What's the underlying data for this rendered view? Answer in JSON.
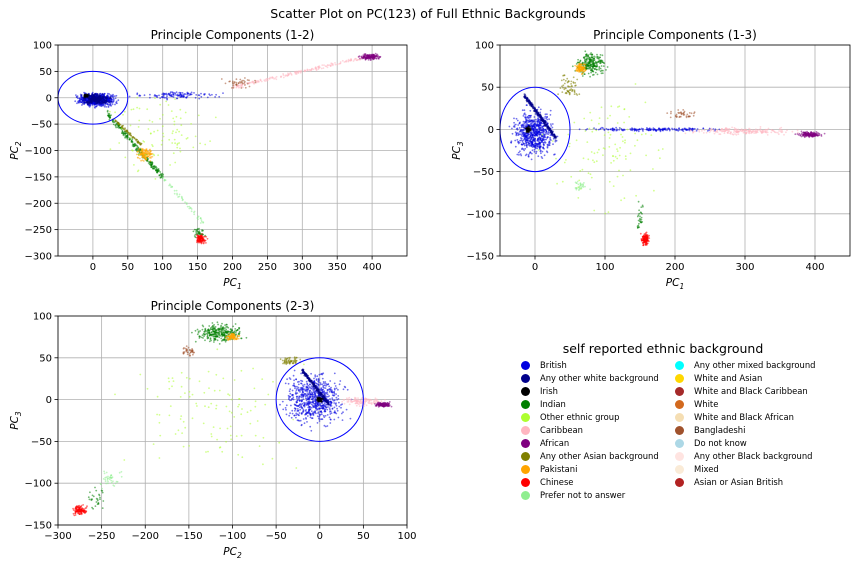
{
  "figure": {
    "suptitle": "Scatter Plot on PC(123) of Full Ethnic Backgrounds"
  },
  "chart_data": [
    {
      "type": "scatter",
      "title": "Principle Components (1-2)",
      "xlabel_base": "PC",
      "xlabel_sub": "1",
      "ylabel_base": "PC",
      "ylabel_sub": "2",
      "xlim": [
        -50,
        450
      ],
      "ylim": [
        -300,
        100
      ],
      "xticks": [
        0,
        50,
        100,
        150,
        200,
        250,
        300,
        350,
        400
      ],
      "yticks": [
        -300,
        -250,
        -200,
        -150,
        -100,
        -50,
        0,
        50,
        100
      ],
      "grid": true,
      "circle": {
        "cx": 0,
        "cy": 0,
        "rx": 50,
        "ry": 50,
        "color": "#0000ff"
      },
      "clusters": [
        {
          "cat": 0,
          "x": [
            -30,
            40
          ],
          "y": [
            -20,
            12
          ],
          "n": 700
        },
        {
          "cat": 0,
          "x": [
            40,
            200
          ],
          "y": [
            -5,
            15
          ],
          "n": 120
        },
        {
          "cat": 1,
          "x": [
            -20,
            30
          ],
          "y": [
            -15,
            10
          ],
          "n": 300
        },
        {
          "cat": 2,
          "x": [
            -15,
            -5
          ],
          "y": [
            0,
            8
          ],
          "n": 60
        },
        {
          "cat": 3,
          "x": [
            20,
            100
          ],
          "y": [
            -150,
            -30
          ],
          "n": 240,
          "line": true
        },
        {
          "cat": 8,
          "x": [
            60,
            90
          ],
          "y": [
            -125,
            -90
          ],
          "n": 120
        },
        {
          "cat": 7,
          "x": [
            30,
            70
          ],
          "y": [
            -90,
            -40
          ],
          "n": 80,
          "line": true
        },
        {
          "cat": 4,
          "x": [
            0,
            200
          ],
          "y": [
            -160,
            20
          ],
          "n": 90
        },
        {
          "cat": 9,
          "x": [
            145,
            165
          ],
          "y": [
            -280,
            -255
          ],
          "n": 130
        },
        {
          "cat": 3,
          "x": [
            140,
            165
          ],
          "y": [
            -270,
            -240
          ],
          "n": 30
        },
        {
          "cat": 5,
          "x": [
            200,
            400
          ],
          "y": [
            20,
            80
          ],
          "n": 200,
          "line": true
        },
        {
          "cat": 6,
          "x": [
            380,
            415
          ],
          "y": [
            70,
            85
          ],
          "n": 160
        },
        {
          "cat": 16,
          "x": [
            180,
            240
          ],
          "y": [
            15,
            40
          ],
          "n": 40
        },
        {
          "cat": 10,
          "x": [
            100,
            160
          ],
          "y": [
            -240,
            -150
          ],
          "n": 50,
          "line": true
        }
      ]
    },
    {
      "type": "scatter",
      "title": "Principle Components (1-3)",
      "xlabel_base": "PC",
      "xlabel_sub": "1",
      "ylabel_base": "PC",
      "ylabel_sub": "3",
      "xlim": [
        -50,
        450
      ],
      "ylim": [
        -150,
        100
      ],
      "xticks": [
        0,
        100,
        200,
        300,
        400
      ],
      "yticks": [
        -150,
        -100,
        -50,
        0,
        50,
        100
      ],
      "grid": true,
      "circle": {
        "cx": 0,
        "cy": 0,
        "rx": 50,
        "ry": 50,
        "color": "#0000ff"
      },
      "clusters": [
        {
          "cat": 0,
          "x": [
            -40,
            40
          ],
          "y": [
            -40,
            30
          ],
          "n": 700
        },
        {
          "cat": 1,
          "x": [
            -15,
            30
          ],
          "y": [
            -10,
            40
          ],
          "n": 300,
          "line": true
        },
        {
          "cat": 2,
          "x": [
            -15,
            -5
          ],
          "y": [
            -5,
            5
          ],
          "n": 60
        },
        {
          "cat": 3,
          "x": [
            50,
            110
          ],
          "y": [
            60,
            95
          ],
          "n": 260
        },
        {
          "cat": 8,
          "x": [
            55,
            75
          ],
          "y": [
            65,
            80
          ],
          "n": 100
        },
        {
          "cat": 4,
          "x": [
            0,
            200
          ],
          "y": [
            -120,
            70
          ],
          "n": 110
        },
        {
          "cat": 7,
          "x": [
            30,
            70
          ],
          "y": [
            30,
            70
          ],
          "n": 60
        },
        {
          "cat": 9,
          "x": [
            150,
            165
          ],
          "y": [
            -140,
            -120
          ],
          "n": 130
        },
        {
          "cat": 3,
          "x": [
            140,
            160
          ],
          "y": [
            -130,
            -80
          ],
          "n": 30
        },
        {
          "cat": 0,
          "x": [
            40,
            300
          ],
          "y": [
            -3,
            3
          ],
          "n": 180
        },
        {
          "cat": 5,
          "x": [
            200,
            400
          ],
          "y": [
            -8,
            4
          ],
          "n": 200
        },
        {
          "cat": 6,
          "x": [
            370,
            415
          ],
          "y": [
            -10,
            -2
          ],
          "n": 160
        },
        {
          "cat": 16,
          "x": [
            180,
            240
          ],
          "y": [
            10,
            25
          ],
          "n": 40
        },
        {
          "cat": 10,
          "x": [
            50,
            80
          ],
          "y": [
            -75,
            -60
          ],
          "n": 30
        }
      ]
    },
    {
      "type": "scatter",
      "title": "Principle Components (2-3)",
      "xlabel_base": "PC",
      "xlabel_sub": "2",
      "ylabel_base": "PC",
      "ylabel_sub": "3",
      "xlim": [
        -300,
        100
      ],
      "ylim": [
        -150,
        100
      ],
      "xticks": [
        -300,
        -250,
        -200,
        -150,
        -100,
        -50,
        0,
        50,
        100
      ],
      "yticks": [
        -150,
        -100,
        -50,
        0,
        50,
        100
      ],
      "grid": true,
      "circle": {
        "cx": 0,
        "cy": 0,
        "rx": 50,
        "ry": 50,
        "color": "#0000ff"
      },
      "clusters": [
        {
          "cat": 0,
          "x": [
            -50,
            40
          ],
          "y": [
            -40,
            40
          ],
          "n": 700
        },
        {
          "cat": 1,
          "x": [
            -20,
            10
          ],
          "y": [
            -5,
            35
          ],
          "n": 300,
          "line": true
        },
        {
          "cat": 2,
          "x": [
            -5,
            5
          ],
          "y": [
            -5,
            5
          ],
          "n": 60
        },
        {
          "cat": 3,
          "x": [
            -150,
            -80
          ],
          "y": [
            65,
            95
          ],
          "n": 300
        },
        {
          "cat": 8,
          "x": [
            -110,
            -90
          ],
          "y": [
            70,
            80
          ],
          "n": 100
        },
        {
          "cat": 7,
          "x": [
            -50,
            -20
          ],
          "y": [
            40,
            55
          ],
          "n": 60
        },
        {
          "cat": 4,
          "x": [
            -260,
            20
          ],
          "y": [
            -120,
            80
          ],
          "n": 110
        },
        {
          "cat": 9,
          "x": [
            -285,
            -265
          ],
          "y": [
            -140,
            -125
          ],
          "n": 130
        },
        {
          "cat": 3,
          "x": [
            -270,
            -240
          ],
          "y": [
            -135,
            -100
          ],
          "n": 30
        },
        {
          "cat": 5,
          "x": [
            20,
            80
          ],
          "y": [
            -10,
            5
          ],
          "n": 120
        },
        {
          "cat": 6,
          "x": [
            60,
            85
          ],
          "y": [
            -10,
            -2
          ],
          "n": 140
        },
        {
          "cat": 16,
          "x": [
            -160,
            -140
          ],
          "y": [
            50,
            65
          ],
          "n": 40
        },
        {
          "cat": 10,
          "x": [
            -260,
            -220
          ],
          "y": [
            -110,
            -80
          ],
          "n": 40
        }
      ]
    }
  ],
  "legend": {
    "title": "self reported ethnic background",
    "placement": "lower-right",
    "entries": [
      {
        "label": "British",
        "color": "#0000e0"
      },
      {
        "label": "Any other white background",
        "color": "#00008b"
      },
      {
        "label": "Irish",
        "color": "#000000"
      },
      {
        "label": "Indian",
        "color": "#008000"
      },
      {
        "label": "Other ethnic group",
        "color": "#adff2f"
      },
      {
        "label": "Caribbean",
        "color": "#ffb6c1"
      },
      {
        "label": "African",
        "color": "#800080"
      },
      {
        "label": "Any other Asian background",
        "color": "#808000"
      },
      {
        "label": "Pakistani",
        "color": "#ffa500"
      },
      {
        "label": "Chinese",
        "color": "#ff0000"
      },
      {
        "label": "Prefer not to answer",
        "color": "#90ee90"
      },
      {
        "label": "Any other mixed background",
        "color": "#00ffff"
      },
      {
        "label": "White and Asian",
        "color": "#ffd700"
      },
      {
        "label": "White and Black Caribbean",
        "color": "#a52a2a"
      },
      {
        "label": "White",
        "color": "#d2691e"
      },
      {
        "label": "White and Black African",
        "color": "#f5deb3"
      },
      {
        "label": "Bangladeshi",
        "color": "#a0522d"
      },
      {
        "label": "Do not know",
        "color": "#add8e6"
      },
      {
        "label": "Any other Black background",
        "color": "#ffe4e1"
      },
      {
        "label": "Mixed",
        "color": "#faebd7"
      },
      {
        "label": "Asian or Asian British",
        "color": "#b22222"
      }
    ]
  }
}
